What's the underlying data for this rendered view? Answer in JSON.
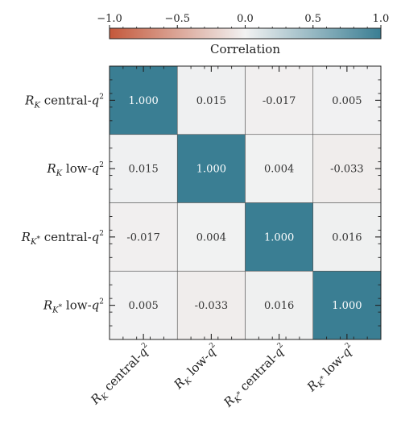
{
  "chart_data": {
    "type": "heatmap",
    "rows": [
      {
        "base": "R",
        "sub": "K",
        "subsup": "",
        "text": " central-",
        "q": "q",
        "exp": "2"
      },
      {
        "base": "R",
        "sub": "K",
        "subsup": "",
        "text": " low-",
        "q": "q",
        "exp": "2"
      },
      {
        "base": "R",
        "sub": "K",
        "subsup": "*",
        "text": " central-",
        "q": "q",
        "exp": "2"
      },
      {
        "base": "R",
        "sub": "K",
        "subsup": "*",
        "text": " low-",
        "q": "q",
        "exp": "2"
      }
    ],
    "columns": [
      {
        "base": "R",
        "sub": "K",
        "subsup": "",
        "text": " central-",
        "q": "q",
        "exp": "2"
      },
      {
        "base": "R",
        "sub": "K",
        "subsup": "",
        "text": " low-",
        "q": "q",
        "exp": "2"
      },
      {
        "base": "R",
        "sub": "K",
        "subsup": "*",
        "text": " central-",
        "q": "q",
        "exp": "2"
      },
      {
        "base": "R",
        "sub": "K",
        "subsup": "*",
        "text": " low-",
        "q": "q",
        "exp": "2"
      }
    ],
    "values": [
      [
        1.0,
        0.015,
        -0.017,
        0.005
      ],
      [
        0.015,
        1.0,
        0.004,
        -0.033
      ],
      [
        -0.017,
        0.004,
        1.0,
        0.016
      ],
      [
        0.005,
        -0.033,
        0.016,
        1.0
      ]
    ],
    "cell_labels": [
      [
        "1.000",
        "0.015",
        "-0.017",
        "0.005"
      ],
      [
        "0.015",
        "1.000",
        "0.004",
        "-0.033"
      ],
      [
        "-0.017",
        "0.004",
        "1.000",
        "0.016"
      ],
      [
        "0.005",
        "-0.033",
        "0.016",
        "1.000"
      ]
    ],
    "colorbar": {
      "label": "Correlation",
      "range": [
        -1.0,
        1.0
      ],
      "ticks": [
        -1.0,
        -0.5,
        0.0,
        0.5,
        1.0
      ],
      "tick_labels": [
        "−1.0",
        "−0.5",
        "0.0",
        "0.5",
        "1.0"
      ],
      "placement": "top"
    },
    "colormap": {
      "negative": "#c4583b",
      "neutral": "#f2f2f2",
      "positive": "#3a7e93"
    }
  }
}
